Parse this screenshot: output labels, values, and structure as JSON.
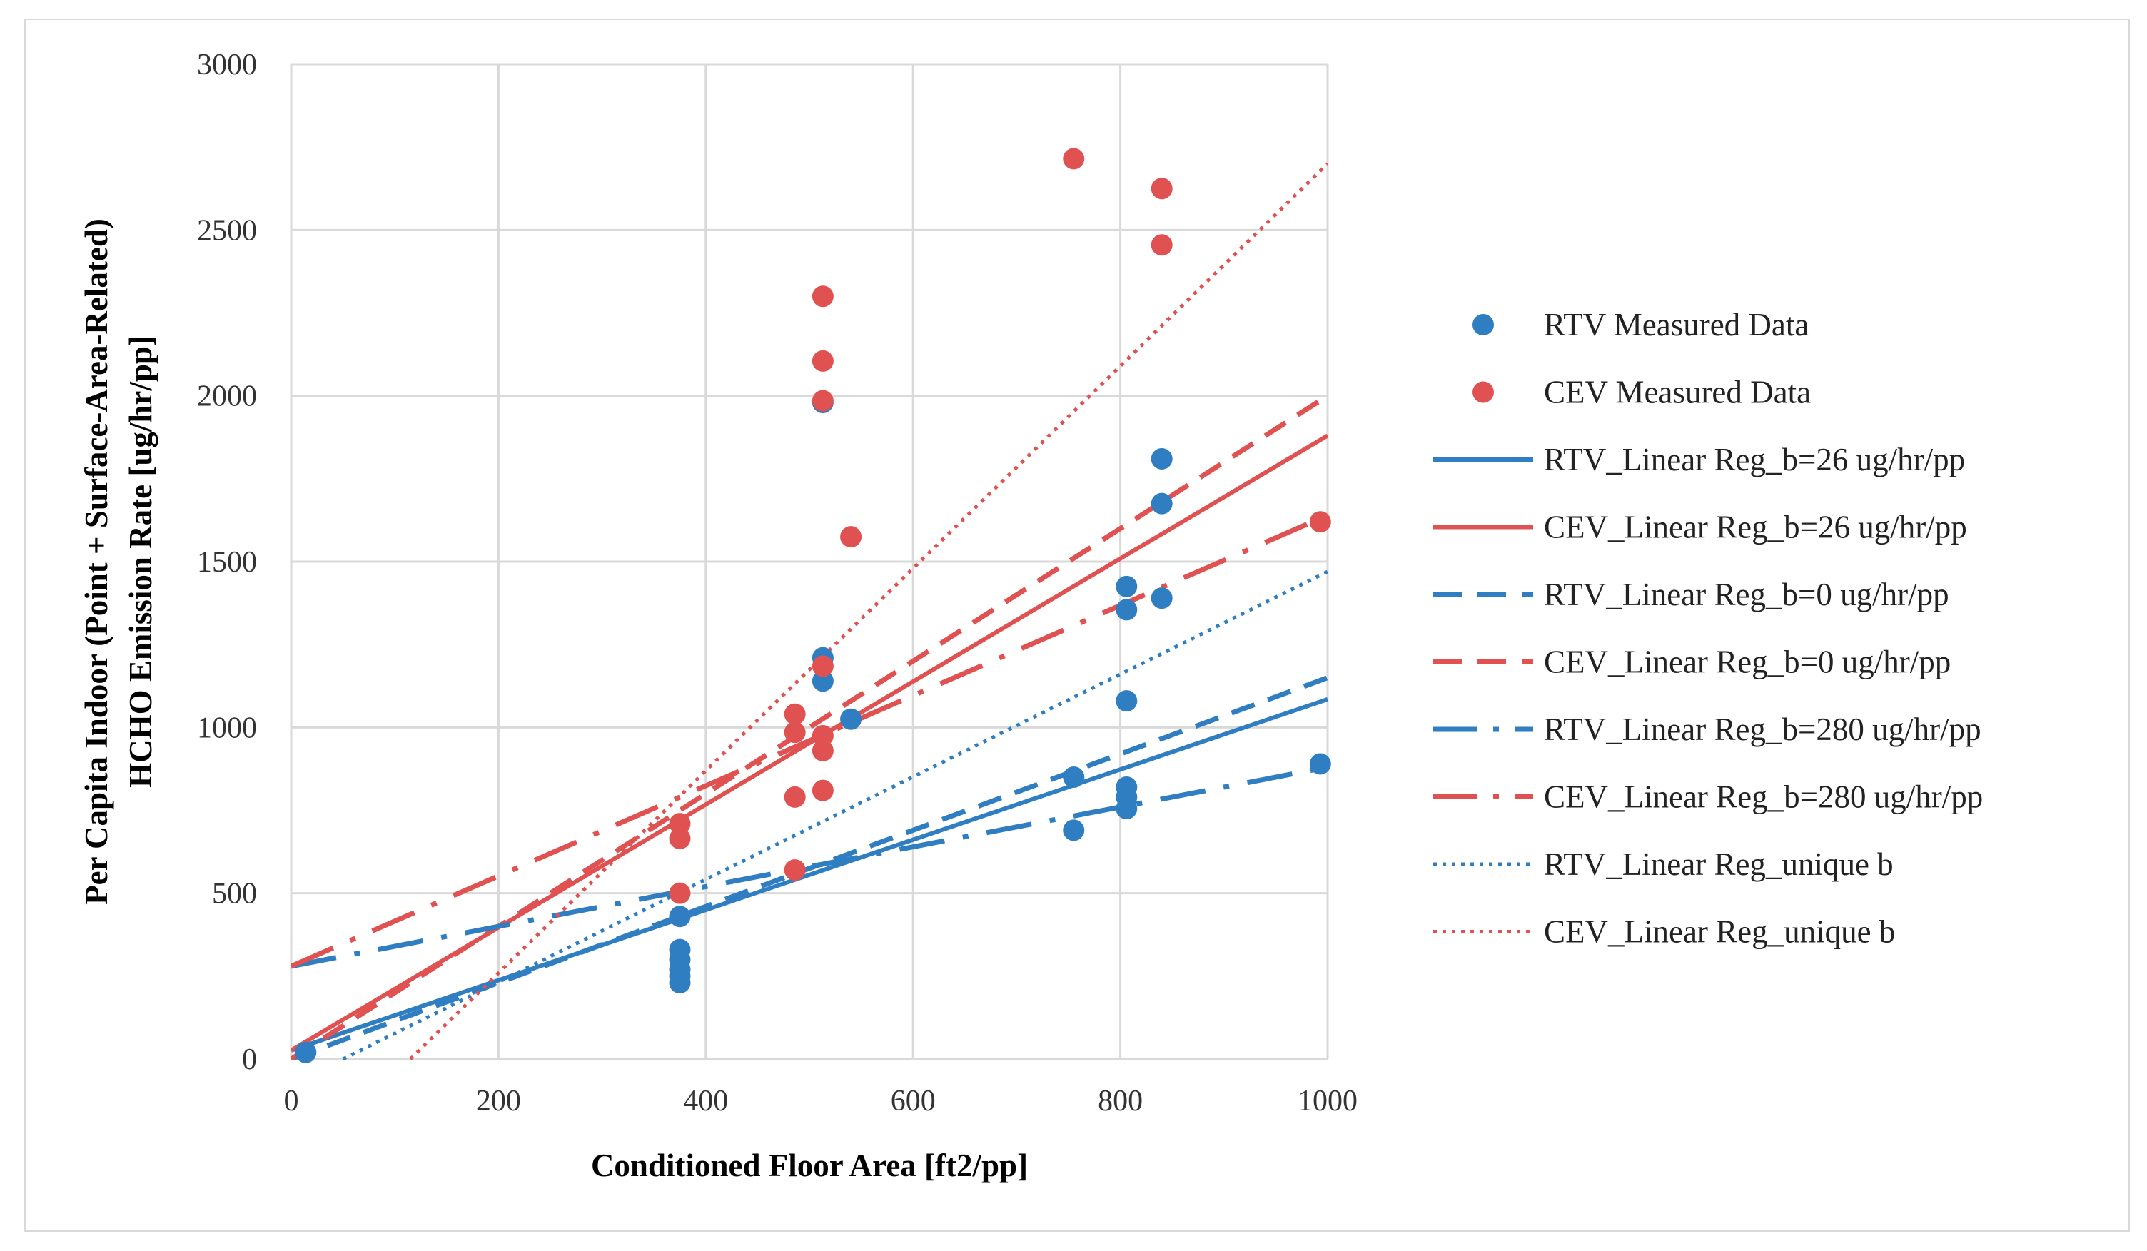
{
  "chart_data": {
    "type": "scatter",
    "title": "",
    "xlabel": "Conditioned Floor Area [ft2/pp]",
    "ylabel_line1": "Per Capita Indoor (Point + Surface-Area-Related)",
    "ylabel_line2": "HCHO Emission Rate [ug/hr/pp]",
    "xlim": [
      0,
      1000
    ],
    "ylim": [
      0,
      3000
    ],
    "xticks": [
      0,
      200,
      400,
      600,
      800,
      1000
    ],
    "yticks": [
      0,
      500,
      1000,
      1500,
      2000,
      2500,
      3000
    ],
    "xtick_labels": [
      "0",
      "200",
      "400",
      "600",
      "800",
      "1000"
    ],
    "ytick_labels": [
      "0",
      "500",
      "1000",
      "1500",
      "2000",
      "2500",
      "3000"
    ],
    "grid": true,
    "legend_position": "right",
    "colors": {
      "rtv": "#2e7ec1",
      "cev": "#e05252",
      "grid": "#d9d9d9"
    },
    "scatter_series": [
      {
        "name": "RTV Measured Data",
        "color": "#2e7ec1",
        "points": [
          [
            14,
            20
          ],
          [
            375,
            430
          ],
          [
            375,
            330
          ],
          [
            375,
            300
          ],
          [
            375,
            270
          ],
          [
            375,
            250
          ],
          [
            375,
            230
          ],
          [
            513,
            1980
          ],
          [
            513,
            1210
          ],
          [
            513,
            1140
          ],
          [
            540,
            1025
          ],
          [
            755,
            850
          ],
          [
            755,
            690
          ],
          [
            806,
            1425
          ],
          [
            806,
            1355
          ],
          [
            806,
            1080
          ],
          [
            806,
            820
          ],
          [
            806,
            790
          ],
          [
            806,
            755
          ],
          [
            840,
            1810
          ],
          [
            840,
            1675
          ],
          [
            840,
            1390
          ],
          [
            993,
            890
          ]
        ]
      },
      {
        "name": "CEV Measured Data",
        "color": "#e05252",
        "points": [
          [
            375,
            710
          ],
          [
            375,
            665
          ],
          [
            375,
            500
          ],
          [
            486,
            1040
          ],
          [
            486,
            985
          ],
          [
            486,
            790
          ],
          [
            486,
            570
          ],
          [
            513,
            2300
          ],
          [
            513,
            2105
          ],
          [
            513,
            1985
          ],
          [
            513,
            1185
          ],
          [
            513,
            975
          ],
          [
            513,
            930
          ],
          [
            513,
            810
          ],
          [
            540,
            1575
          ],
          [
            755,
            2715
          ],
          [
            840,
            2625
          ],
          [
            840,
            2455
          ],
          [
            993,
            1620
          ]
        ]
      }
    ],
    "line_series": [
      {
        "name": "RTV_Linear Reg_b=26 ug/hr/pp",
        "color": "#2e7ec1",
        "style": "solid",
        "x": [
          0,
          1000
        ],
        "y": [
          26,
          1085
        ]
      },
      {
        "name": "CEV_Linear Reg_b=26 ug/hr/pp",
        "color": "#e05252",
        "style": "solid",
        "x": [
          0,
          1000
        ],
        "y": [
          26,
          1880
        ]
      },
      {
        "name": "RTV_Linear Reg_b=0 ug/hr/pp",
        "color": "#2e7ec1",
        "style": "dash",
        "x": [
          0,
          1000
        ],
        "y": [
          0,
          1150
        ]
      },
      {
        "name": "CEV_Linear Reg_b=0 ug/hr/pp",
        "color": "#e05252",
        "style": "dash",
        "x": [
          0,
          1000
        ],
        "y": [
          0,
          2000
        ]
      },
      {
        "name": "RTV_Linear Reg_b=280 ug/hr/pp",
        "color": "#2e7ec1",
        "style": "longdashdot",
        "x": [
          0,
          1000
        ],
        "y": [
          280,
          880
        ]
      },
      {
        "name": "CEV_Linear Reg_b=280 ug/hr/pp",
        "color": "#e05252",
        "style": "longdashdot",
        "x": [
          0,
          1000
        ],
        "y": [
          280,
          1640
        ]
      },
      {
        "name": "RTV_Linear Reg_unique b",
        "color": "#2e7ec1",
        "style": "dot",
        "x": [
          50,
          1000
        ],
        "y": [
          0,
          1470
        ]
      },
      {
        "name": "CEV_Linear Reg_unique b",
        "color": "#e05252",
        "style": "dot",
        "x": [
          115,
          1000
        ],
        "y": [
          0,
          2700
        ]
      }
    ]
  }
}
